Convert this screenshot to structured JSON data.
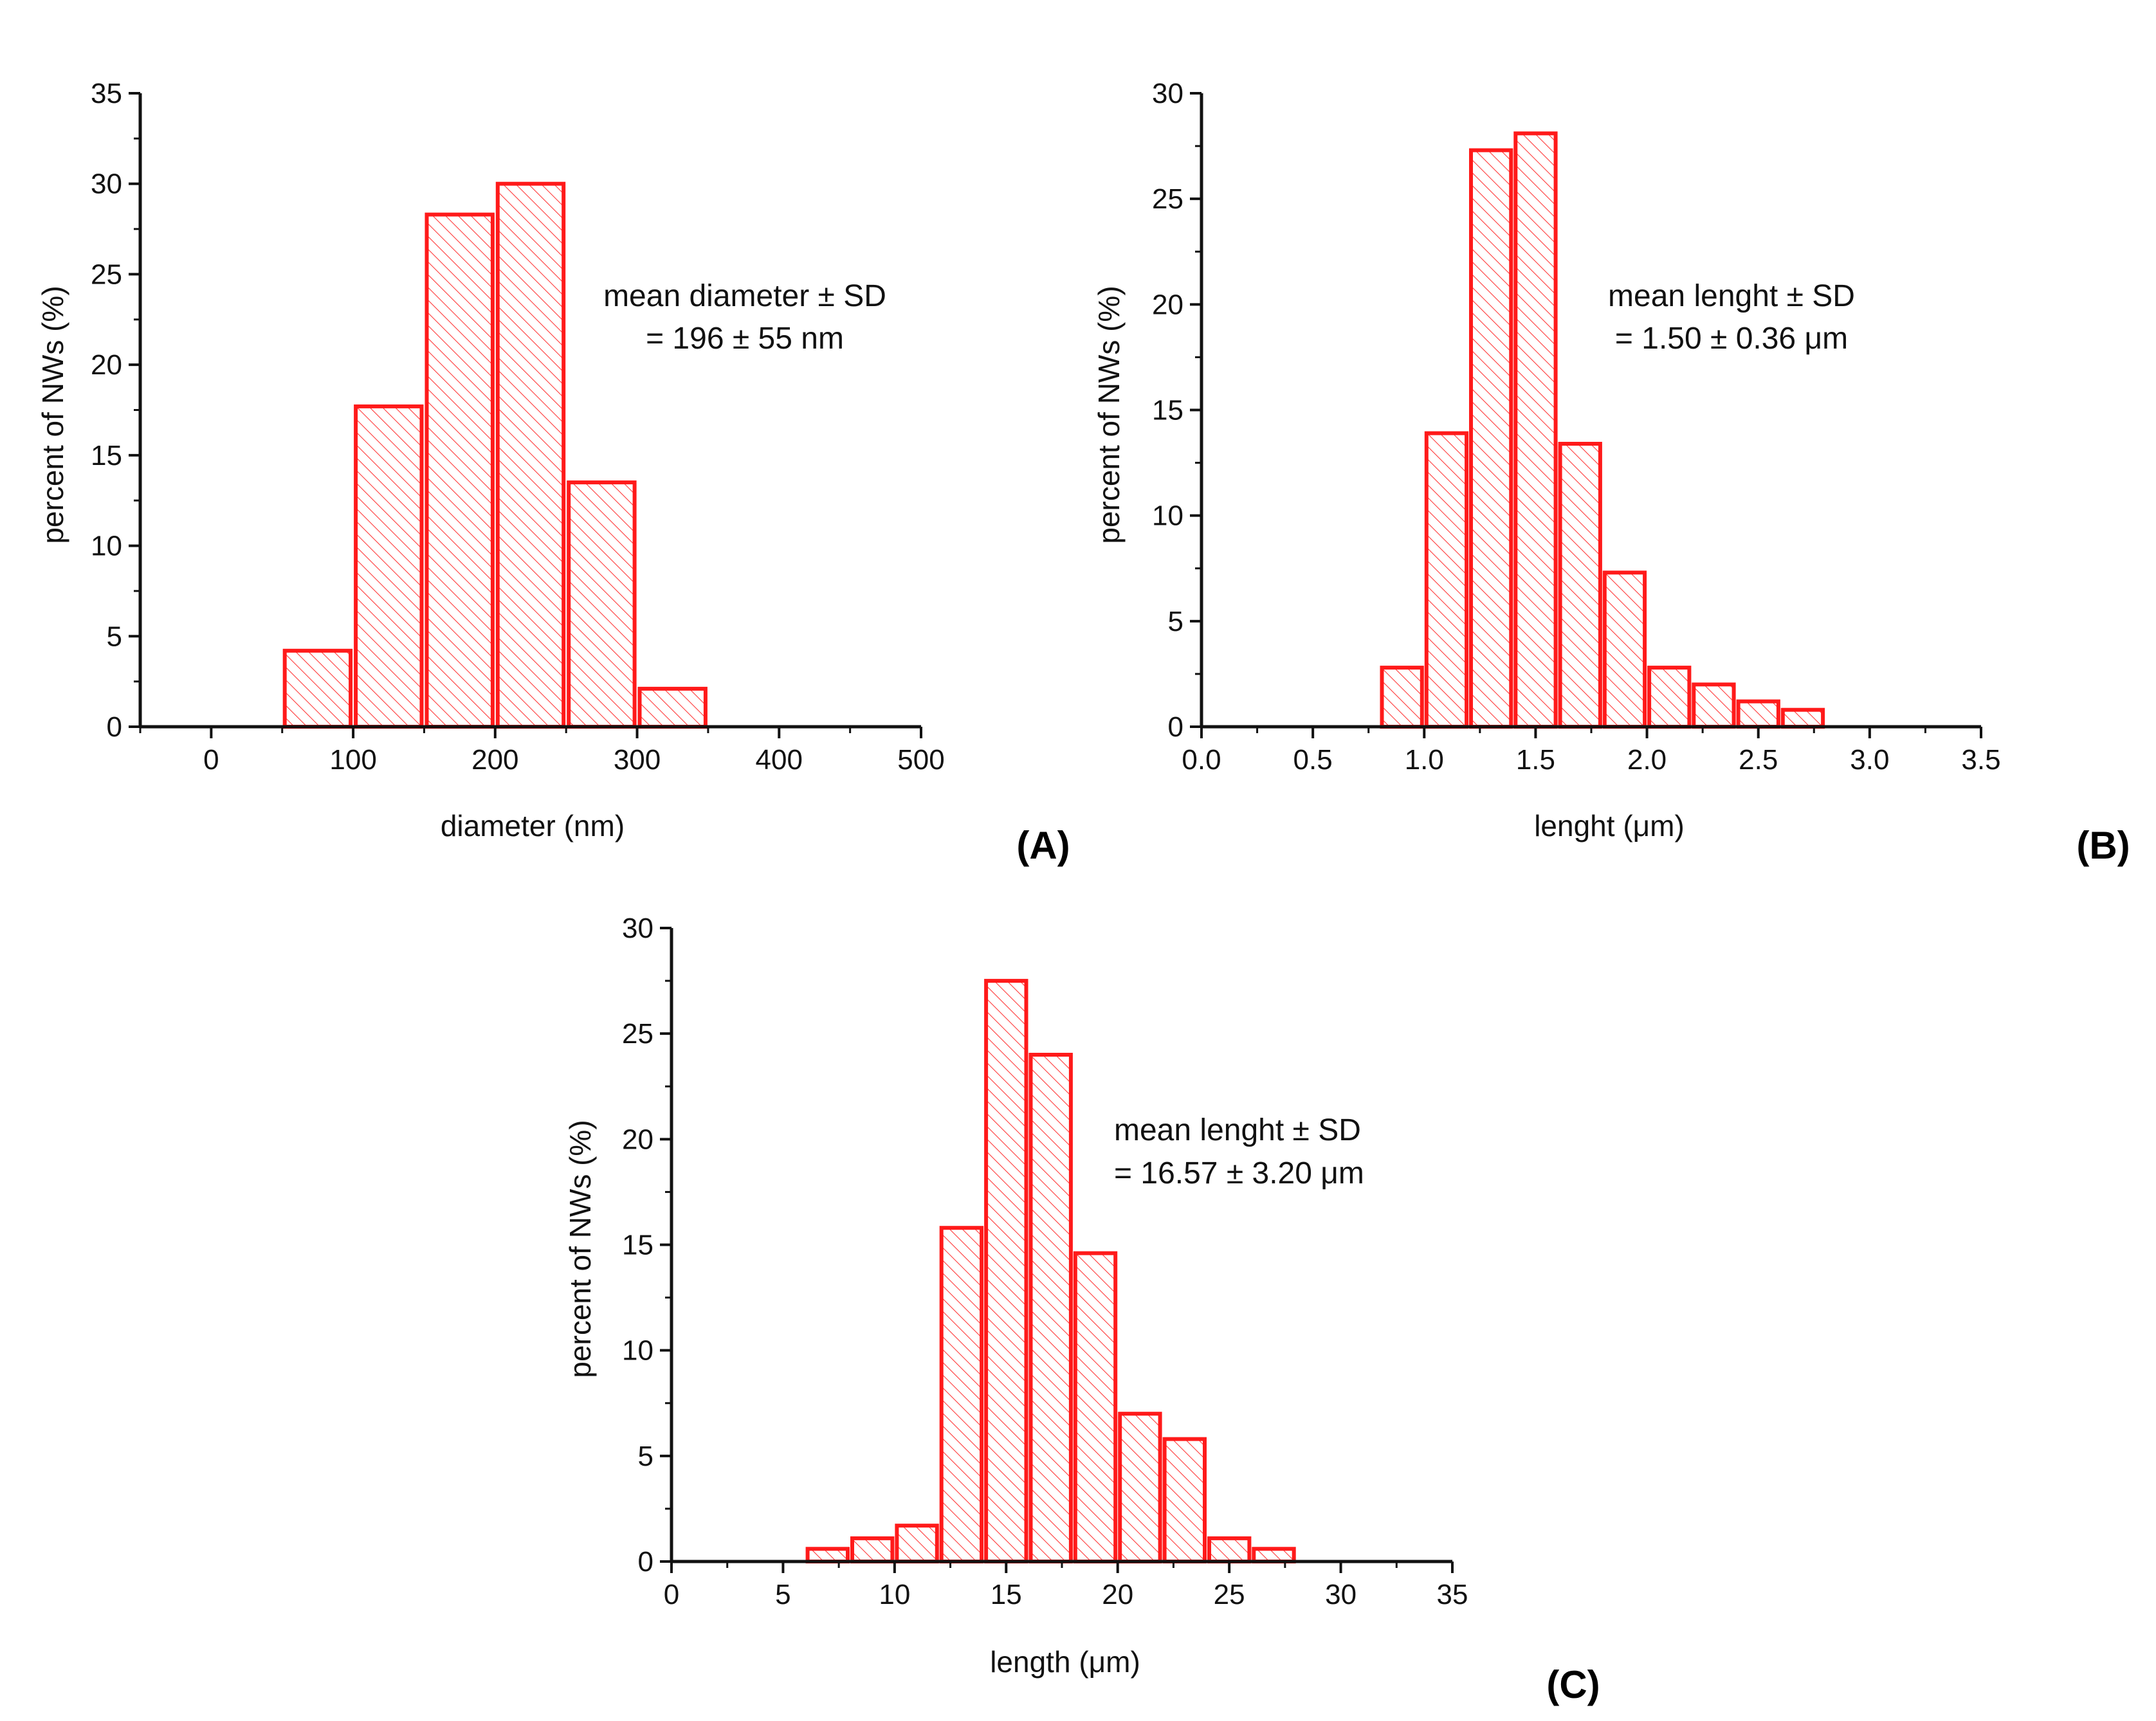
{
  "colors": {
    "bar": "#ff1a1a",
    "axis": "#111111"
  },
  "chart_data": [
    {
      "type": "bar",
      "panel_label": "(A)",
      "xlabel": "diameter (nm)",
      "ylabel": "percent of NWs (%)",
      "xlim": [
        -50,
        500
      ],
      "ylim": [
        0,
        35
      ],
      "xticks": [
        "0",
        "100",
        "200",
        "300",
        "400",
        "500"
      ],
      "xtick_values": [
        0,
        100,
        200,
        300,
        400,
        500
      ],
      "yticks": [
        "0",
        "5",
        "10",
        "15",
        "20",
        "25",
        "30",
        "35"
      ],
      "ytick_values": [
        0,
        5,
        10,
        15,
        20,
        25,
        30,
        35
      ],
      "bin_width": 50,
      "bar_gap": 8,
      "bins": [
        {
          "center": 75,
          "value": 4.2
        },
        {
          "center": 125,
          "value": 17.7
        },
        {
          "center": 175,
          "value": 28.3
        },
        {
          "center": 225,
          "value": 30.0
        },
        {
          "center": 275,
          "value": 13.5
        },
        {
          "center": 325,
          "value": 2.1
        }
      ],
      "annotation": [
        "mean diameter ± SD",
        "= 196 ± 55 nm"
      ]
    },
    {
      "type": "bar",
      "panel_label": "(B)",
      "xlabel": "lenght (μm)",
      "ylabel": "percent of NWs (%)",
      "xlim": [
        0,
        3.5
      ],
      "ylim": [
        0,
        30
      ],
      "xticks": [
        "0.0",
        "0.5",
        "1.0",
        "1.5",
        "2.0",
        "2.5",
        "3.0",
        "3.5"
      ],
      "xtick_values": [
        0,
        0.5,
        1.0,
        1.5,
        2.0,
        2.5,
        3.0,
        3.5
      ],
      "yticks": [
        "0",
        "5",
        "10",
        "15",
        "20",
        "25",
        "30"
      ],
      "ytick_values": [
        0,
        5,
        10,
        15,
        20,
        25,
        30
      ],
      "bin_width": 0.2,
      "bar_gap": 7,
      "bins": [
        {
          "center": 0.9,
          "value": 2.8
        },
        {
          "center": 1.1,
          "value": 13.9
        },
        {
          "center": 1.3,
          "value": 27.3
        },
        {
          "center": 1.5,
          "value": 28.1
        },
        {
          "center": 1.7,
          "value": 13.4
        },
        {
          "center": 1.9,
          "value": 7.3
        },
        {
          "center": 2.1,
          "value": 2.8
        },
        {
          "center": 2.3,
          "value": 2.0
        },
        {
          "center": 2.5,
          "value": 1.2
        },
        {
          "center": 2.7,
          "value": 0.8
        }
      ],
      "annotation": [
        "mean lenght ± SD",
        "= 1.50 ± 0.36 μm"
      ]
    },
    {
      "type": "bar",
      "panel_label": "(C)",
      "xlabel": "length (μm)",
      "ylabel": "percent of NWs (%)",
      "xlim": [
        0,
        35
      ],
      "ylim": [
        0,
        30
      ],
      "xticks": [
        "0",
        "5",
        "10",
        "15",
        "20",
        "25",
        "30",
        "35"
      ],
      "xtick_values": [
        0,
        5,
        10,
        15,
        20,
        25,
        30,
        35
      ],
      "yticks": [
        "0",
        "5",
        "10",
        "15",
        "20",
        "25",
        "30"
      ],
      "ytick_values": [
        0,
        5,
        10,
        15,
        20,
        25,
        30
      ],
      "bin_width": 2,
      "bar_gap": 7,
      "bins": [
        {
          "center": 7,
          "value": 0.6
        },
        {
          "center": 9,
          "value": 1.1
        },
        {
          "center": 11,
          "value": 1.7
        },
        {
          "center": 13,
          "value": 15.8
        },
        {
          "center": 15,
          "value": 27.5
        },
        {
          "center": 17,
          "value": 24.0
        },
        {
          "center": 19,
          "value": 14.6
        },
        {
          "center": 21,
          "value": 7.0
        },
        {
          "center": 23,
          "value": 5.8
        },
        {
          "center": 25,
          "value": 1.1
        },
        {
          "center": 27,
          "value": 0.6
        }
      ],
      "annotation": [
        "mean lenght ± SD",
        "= 16.57 ± 3.20 μm"
      ]
    }
  ]
}
